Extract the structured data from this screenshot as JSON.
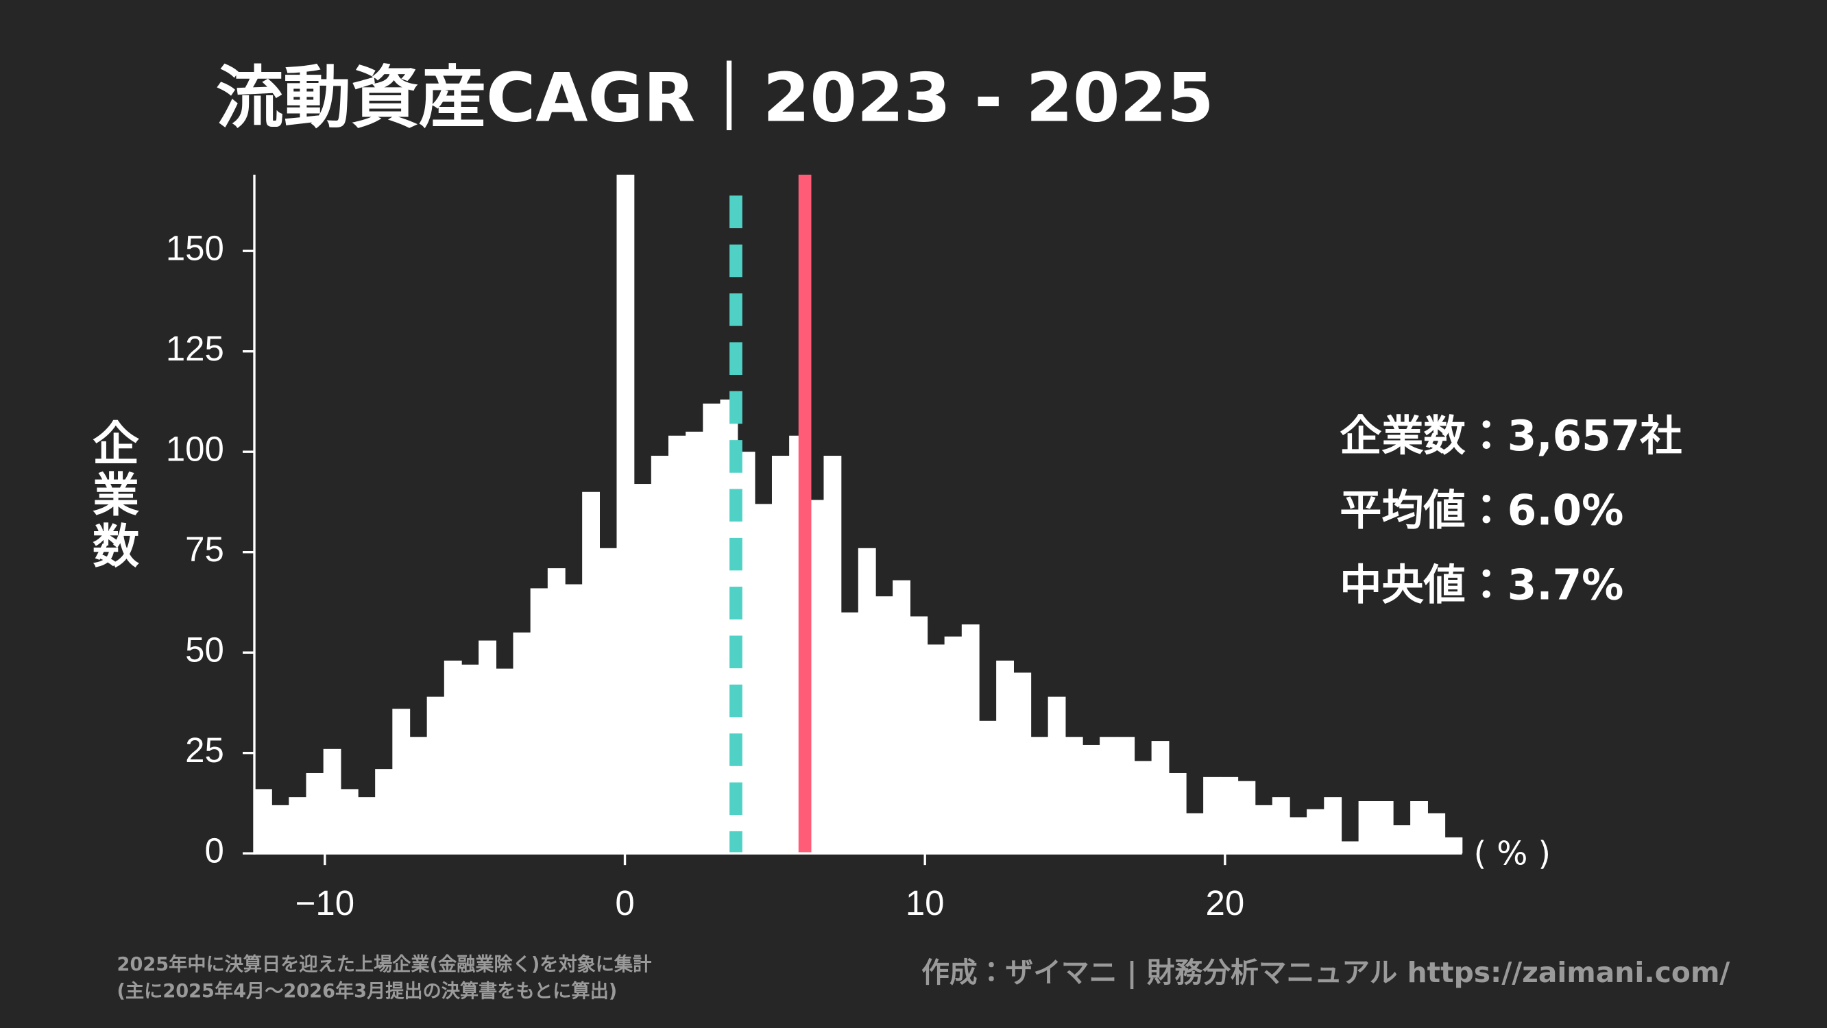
{
  "chart_data": {
    "type": "histogram",
    "title": "流動資産CAGR｜2023 - 2025",
    "y_label": "企業数",
    "x_label": "( % )",
    "count_label": "企業数：3,657社",
    "mean": {
      "value": 6.0,
      "label": "平均値：6.0%",
      "color": "#ff5c77"
    },
    "median": {
      "value": 3.7,
      "label": "中央値：3.7%",
      "color": "#4fd1c5"
    },
    "footnotes": [
      "2025年中に決算日を迎えた上場企業(金融業除く)を対象に集計",
      "(主に2025年4月〜2026年3月提出の決算書をもとに算出)"
    ],
    "credit": "作成：ザイマニ | 財務分析マニュアル https://zaimani.com/",
    "color": "#ffffff",
    "bins": [
      -12.35,
      -11.775,
      -11.2,
      -10.625,
      -10.05,
      -9.475,
      -8.9,
      -8.325,
      -7.75,
      -7.175,
      -6.6,
      -6.025,
      -5.45,
      -4.875,
      -4.3,
      -3.725,
      -3.15,
      -2.575,
      -2.0,
      -1.425,
      -0.85,
      -0.275,
      0.3,
      0.875,
      1.45,
      2.025,
      2.6,
      3.175,
      3.75,
      4.325,
      4.9,
      5.475,
      6.05,
      6.625,
      7.2,
      7.775,
      8.35,
      8.925,
      9.5,
      10.075,
      10.65,
      11.225,
      11.8,
      12.375,
      12.95,
      13.525,
      14.1,
      14.675,
      15.25,
      15.825,
      16.4,
      16.975,
      17.55,
      18.125,
      18.7,
      19.275,
      19.85,
      20.425,
      21.0,
      21.575,
      22.15,
      22.725,
      23.3,
      23.875,
      24.45,
      25.025,
      25.6,
      26.175,
      26.75,
      27.325,
      27.9
    ],
    "values": [
      16,
      12,
      14,
      20,
      26,
      16,
      14,
      21,
      36,
      29,
      39,
      48,
      47,
      53,
      46,
      55,
      66,
      71,
      67,
      90,
      76,
      172,
      92,
      99,
      104,
      105,
      112,
      113,
      100,
      87,
      99,
      104,
      88,
      99,
      60,
      76,
      64,
      68,
      59,
      52,
      54,
      57,
      33,
      48,
      45,
      29,
      39,
      29,
      27,
      29,
      29,
      23,
      28,
      20,
      10,
      19,
      19,
      18,
      12,
      14,
      9,
      11,
      14,
      3,
      13,
      13,
      7,
      13,
      10,
      4
    ],
    "xlim": [
      -12.35,
      27.9
    ],
    "ylim": [
      0,
      169
    ],
    "xticks": [
      {
        "value": -10,
        "label": "−10"
      },
      0,
      10,
      20
    ],
    "yticks": [
      0,
      25,
      50,
      75,
      100,
      125,
      150
    ]
  }
}
